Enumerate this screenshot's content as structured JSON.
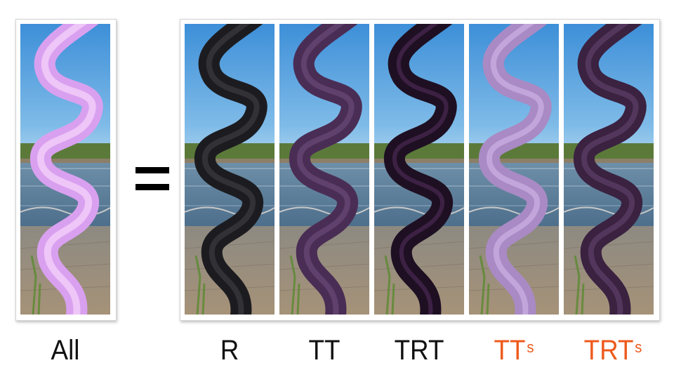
{
  "labels": {
    "all": "All",
    "equals": "=",
    "r": "R",
    "tt": "TT",
    "trt": "TRT",
    "tts_main": "TT",
    "tts_sub": "s",
    "trts_main": "TRT",
    "trts_sub": "s"
  },
  "colors": {
    "label_default": "#111111",
    "label_highlight": "#ee5a1c",
    "hair_all": "#d9a0f0",
    "hair_r": "#1c1c20",
    "hair_tt": "#4a2d55",
    "hair_trt": "#1e1022",
    "hair_tts": "#a98ac4",
    "hair_trts": "#3a2240"
  }
}
